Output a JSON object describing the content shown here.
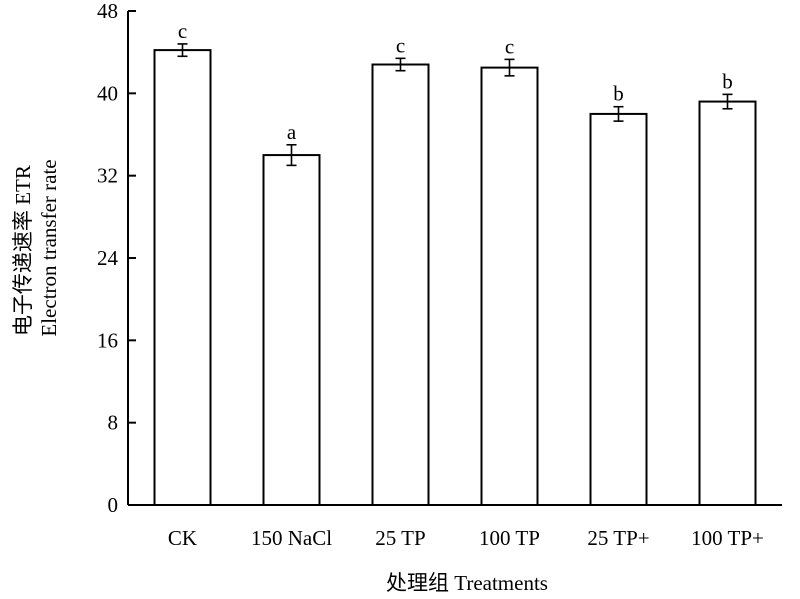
{
  "chart_data": {
    "type": "bar",
    "title": "",
    "xlabel": "处理组 Treatments",
    "ylabel_line1": "电子传递速率 ETR",
    "ylabel_line2": "Electron transfer rate",
    "categories": [
      "CK",
      "150 NaCl",
      "25 TP",
      "100 TP",
      "25 TP+",
      "100 TP+"
    ],
    "values": [
      44.2,
      34.0,
      42.8,
      42.5,
      38.0,
      39.2
    ],
    "errors": [
      0.6,
      1.0,
      0.6,
      0.8,
      0.7,
      0.7
    ],
    "significance": [
      "c",
      "a",
      "c",
      "c",
      "b",
      "b"
    ],
    "ylim": [
      0,
      48
    ],
    "yticks": [
      "0",
      "8",
      "16",
      "24",
      "32",
      "40",
      "48"
    ],
    "grid": false,
    "bar_fill": "#ffffff",
    "bar_stroke": "#000000"
  }
}
